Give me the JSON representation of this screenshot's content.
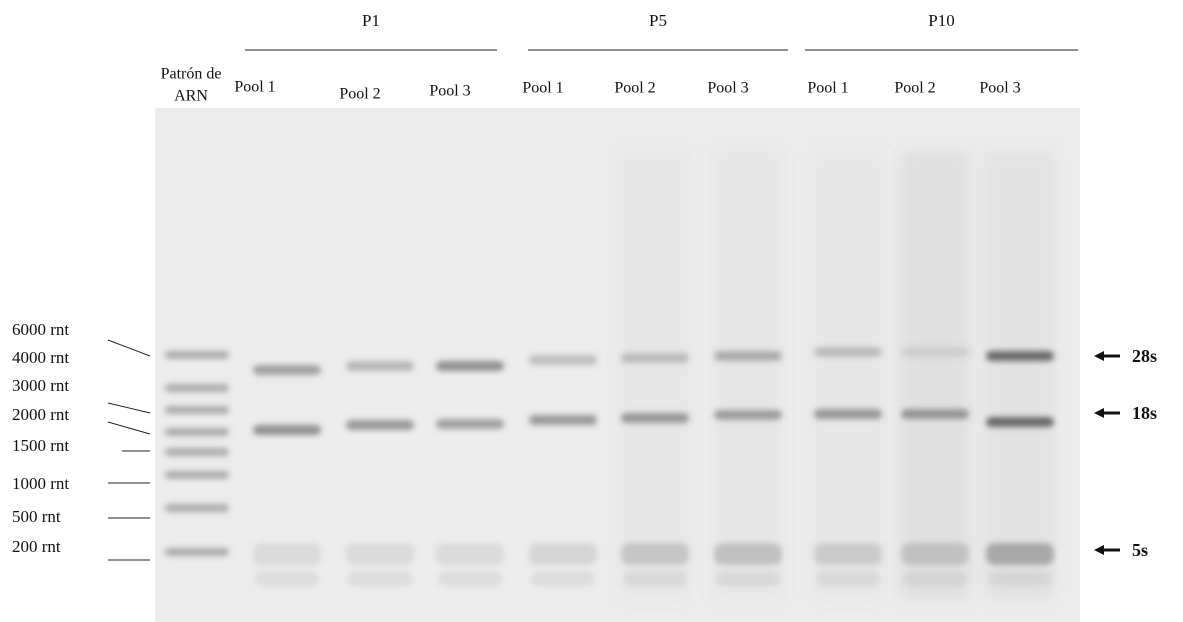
{
  "groups": [
    {
      "label": "P1",
      "lanes": [
        "Pool 1",
        "Pool 2",
        "Pool 3"
      ]
    },
    {
      "label": "P5",
      "lanes": [
        "Pool 1",
        "Pool 2",
        "Pool 3"
      ]
    },
    {
      "label": "P10",
      "lanes": [
        "Pool 1",
        "Pool 2",
        "Pool 3"
      ]
    }
  ],
  "ladder_label": [
    "Patrón de",
    "ARN"
  ],
  "markers": [
    "6000 rnt",
    "4000 rnt",
    "3000 rnt",
    "2000 rnt",
    "1500 rnt",
    "1000 rnt",
    "500 rnt",
    "200 rnt"
  ],
  "bands": [
    "28s",
    "18s",
    "5s"
  ]
}
